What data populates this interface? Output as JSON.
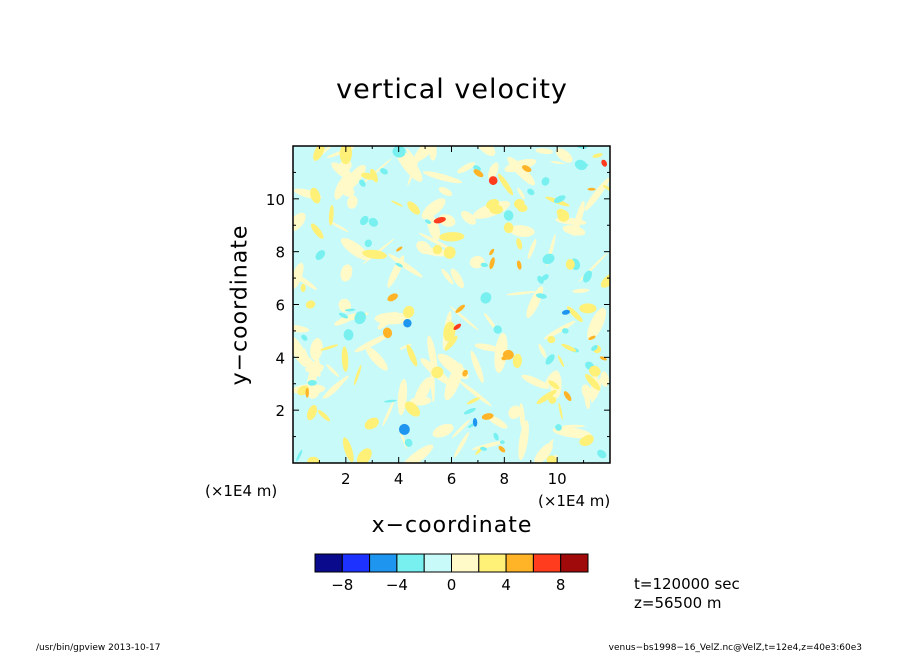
{
  "chart_data": {
    "type": "heatmap",
    "title": "vertical velocity",
    "xlabel": "x−coordinate",
    "ylabel": "y−coordinate",
    "x_unit": "(×1E4 m)",
    "y_unit": "(×1E4 m)",
    "xlim": [
      0,
      12
    ],
    "ylim": [
      0,
      12
    ],
    "x_ticks": [
      2,
      4,
      6,
      8,
      10
    ],
    "y_ticks": [
      2,
      4,
      6,
      8,
      10
    ],
    "x_tick_labels": [
      "2",
      "4",
      "6",
      "8",
      "10"
    ],
    "y_tick_labels": [
      "2",
      "4",
      "6",
      "8",
      "10"
    ],
    "colorbar": {
      "levels": [
        -10,
        -8,
        -6,
        -4,
        -2,
        0,
        2,
        4,
        6,
        8,
        10
      ],
      "colors": [
        "#0a0a8c",
        "#1e32ff",
        "#1e96f0",
        "#78f0f0",
        "#c8fafa",
        "#fffac8",
        "#fff078",
        "#ffb428",
        "#ff3c1e",
        "#a00a0a"
      ],
      "tick_values": [
        -8,
        -4,
        0,
        4,
        8
      ],
      "tick_labels": [
        "−8",
        "−4",
        "0",
        "4",
        "8"
      ]
    },
    "annotations": {
      "time": "t=120000 sec",
      "z": "z=56500 m"
    }
  },
  "footer": {
    "left": "/usr/bin/gpview   2013-10-17",
    "right": "venus−bs1998−16_VelZ.nc@VelZ,t=12e4,z=40e3:60e3"
  }
}
